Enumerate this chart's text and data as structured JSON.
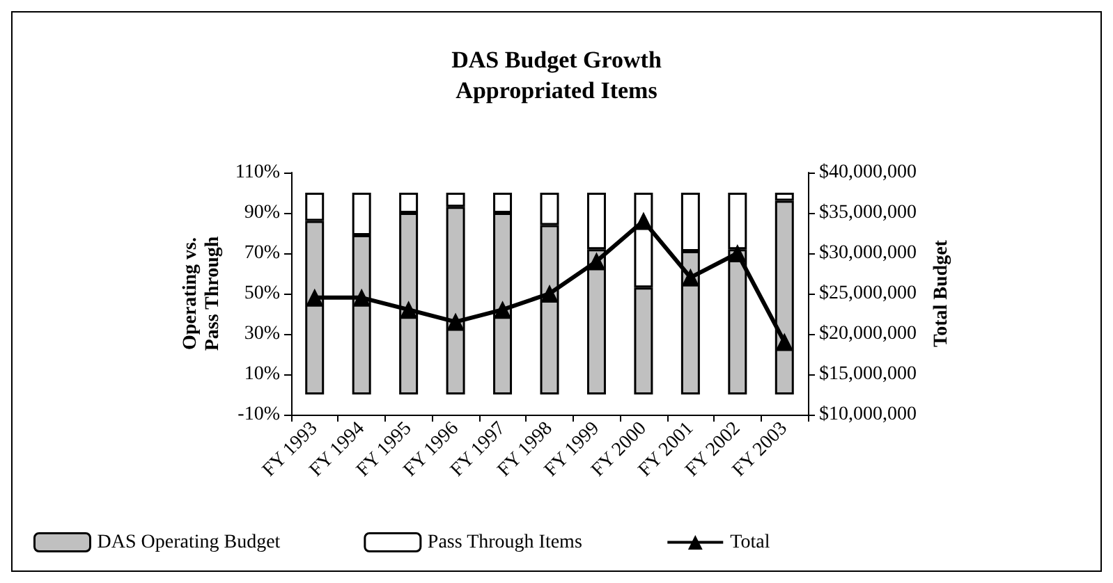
{
  "chart_data": {
    "type": "bar",
    "title": "DAS Budget Growth\nAppropriated Items",
    "ylabel": "Operating vs.\nPass Through",
    "y2label": "Total Budget",
    "categories": [
      "FY 1993",
      "FY 1994",
      "FY 1995",
      "FY 1996",
      "FY 1997",
      "FY 1998",
      "FY 1999",
      "FY 2000",
      "FY 2001",
      "FY 2002",
      "FY 2003"
    ],
    "stacked": true,
    "series": [
      {
        "name": "DAS Operating Budget",
        "color": "#c0c0c0",
        "values": [
          86,
          79,
          90,
          93,
          90,
          84,
          72,
          53,
          71,
          72,
          96
        ]
      },
      {
        "name": "Pass Through Items",
        "color": "#ffffff",
        "values": [
          14,
          21,
          10,
          7,
          10,
          16,
          28,
          47,
          29,
          28,
          4
        ]
      },
      {
        "name": "Total",
        "type": "line",
        "axis": "y2",
        "color": "#000000",
        "marker": "triangle",
        "values": [
          24500000,
          24500000,
          23000000,
          21500000,
          23000000,
          25000000,
          29000000,
          34000000,
          27000000,
          30000000,
          19000000
        ]
      }
    ],
    "ylim": [
      -10,
      110
    ],
    "yticks": [
      {
        "value": -10,
        "label": "-10%"
      },
      {
        "value": 10,
        "label": "10%"
      },
      {
        "value": 30,
        "label": "30%"
      },
      {
        "value": 50,
        "label": "50%"
      },
      {
        "value": 70,
        "label": "70%"
      },
      {
        "value": 90,
        "label": "90%"
      },
      {
        "value": 110,
        "label": "110%"
      }
    ],
    "y2lim": [
      10000000,
      40000000
    ],
    "y2ticks": [
      {
        "value": 10000000,
        "label": "$10,000,000"
      },
      {
        "value": 15000000,
        "label": "$15,000,000"
      },
      {
        "value": 20000000,
        "label": "$20,000,000"
      },
      {
        "value": 25000000,
        "label": "$25,000,000"
      },
      {
        "value": 30000000,
        "label": "$30,000,000"
      },
      {
        "value": 35000000,
        "label": "$35,000,000"
      },
      {
        "value": 40000000,
        "label": "$40,000,000"
      }
    ],
    "grid": false,
    "legend": "bottom"
  }
}
